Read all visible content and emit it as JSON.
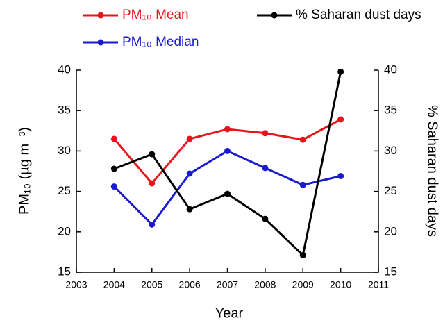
{
  "chart_data": {
    "type": "line",
    "x": [
      2004,
      2005,
      2006,
      2007,
      2008,
      2009,
      2010
    ],
    "xlim": [
      2003,
      2011
    ],
    "xticks": [
      2003,
      2004,
      2005,
      2006,
      2007,
      2008,
      2009,
      2010,
      2011
    ],
    "ylim": [
      15,
      40
    ],
    "yticks": [
      15,
      20,
      25,
      30,
      35,
      40
    ],
    "y2lim": [
      15,
      40
    ],
    "y2ticks": [
      15,
      20,
      25,
      30,
      35,
      40
    ],
    "xlabel": "Year",
    "ylabel": "PM₁₀ (µg m⁻³)",
    "y2label": "% Saharan dust days",
    "series": [
      {
        "name": "PM₁₀ Mean",
        "color": "#e8141b",
        "values": [
          31.5,
          26.0,
          31.5,
          32.7,
          32.2,
          31.4,
          33.9
        ]
      },
      {
        "name": "PM₁₀ Median",
        "color": "#1a1ad0",
        "values": [
          25.6,
          20.9,
          27.2,
          30.0,
          27.9,
          25.8,
          26.9
        ]
      },
      {
        "name": "% Saharan dust days",
        "color": "#000000",
        "axis": "y2",
        "values": [
          27.8,
          29.6,
          22.8,
          24.7,
          21.6,
          17.1,
          39.8
        ]
      }
    ]
  }
}
